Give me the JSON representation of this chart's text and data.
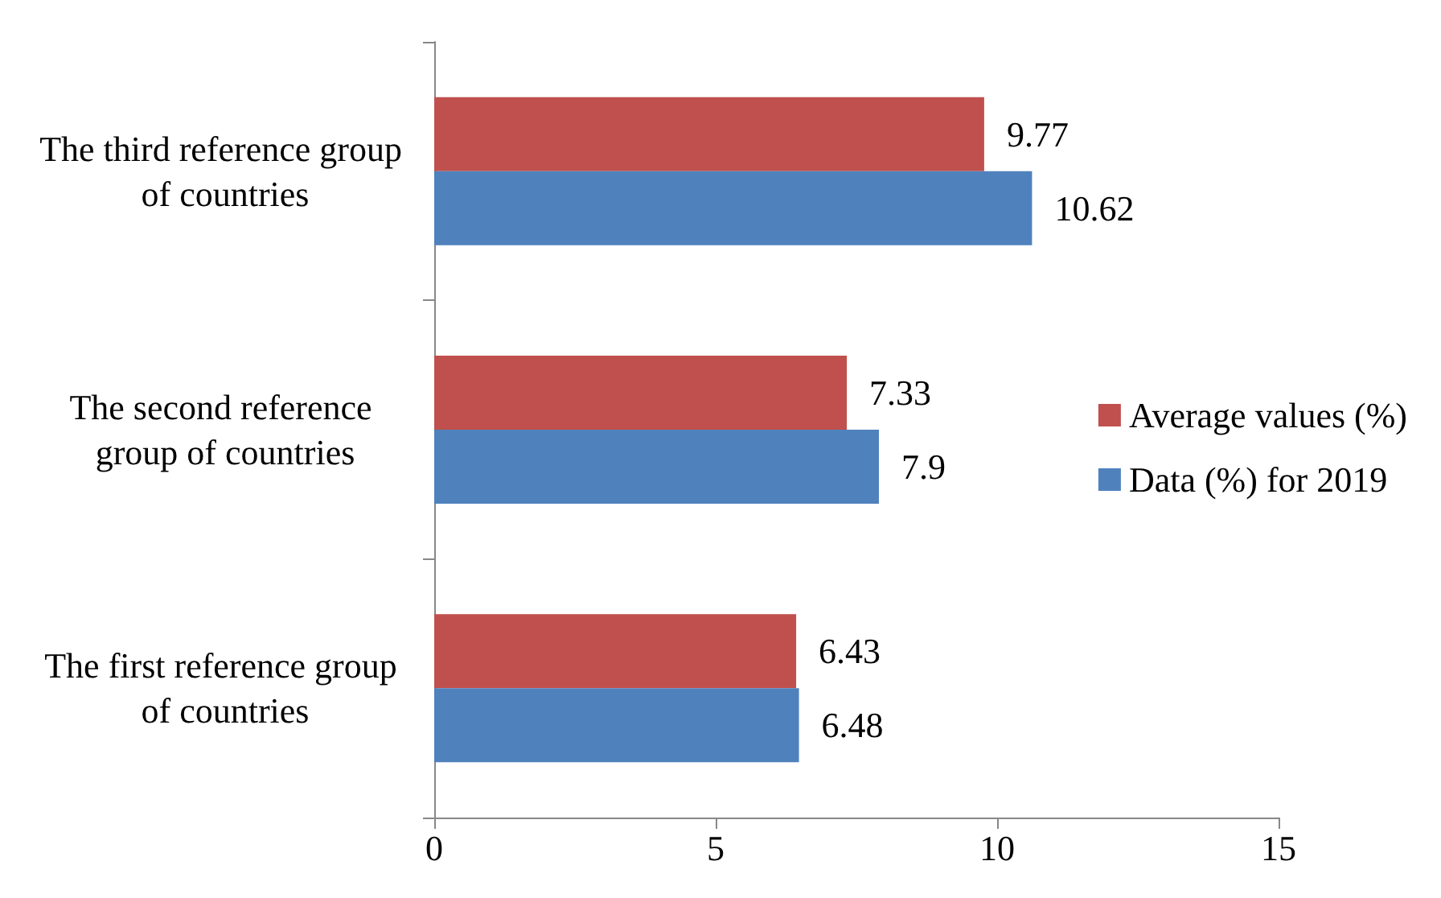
{
  "chart_data": {
    "type": "bar",
    "orientation": "horizontal",
    "categories": [
      "The third reference group of countries",
      "The second reference group of countries",
      "The first reference group of countries"
    ],
    "series": [
      {
        "name": "Average values (%)",
        "color": "#c0504d",
        "values": [
          9.77,
          7.33,
          6.43
        ]
      },
      {
        "name": "Data (%) for 2019",
        "color": "#4f81bd",
        "values": [
          10.62,
          7.9,
          6.48
        ]
      }
    ],
    "xlim": [
      0,
      15
    ],
    "xticks": [
      0,
      5,
      10,
      15
    ],
    "grid": false,
    "legend": "right",
    "data_labels": true
  }
}
